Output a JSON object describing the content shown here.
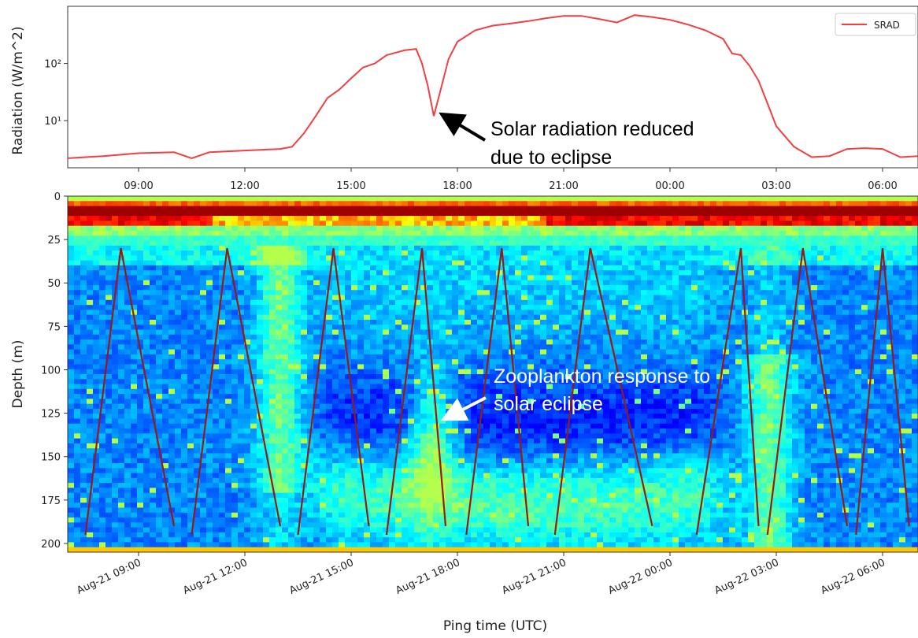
{
  "chart_data": [
    {
      "type": "line",
      "ylabel": "Radiation (W/m^2)",
      "yscale": "log",
      "ylim": [
        1.5,
        1000
      ],
      "yticks": [
        {
          "value": 10,
          "label": "10¹"
        },
        {
          "value": 100,
          "label": "10²"
        }
      ],
      "x_tick_labels": [
        "09:00",
        "12:00",
        "15:00",
        "18:00",
        "21:00",
        "00:00",
        "03:00",
        "06:00"
      ],
      "xlim": [
        "2017-08-21 07:00",
        "2017-08-22 07:00"
      ],
      "legend": {
        "entries": [
          "SRAD"
        ],
        "location": "upper right"
      },
      "series": [
        {
          "name": "SRAD",
          "color": "#f04040",
          "points": [
            [
              "2017-08-21 07:00",
              2.2
            ],
            [
              "2017-08-21 08:00",
              2.4
            ],
            [
              "2017-08-21 09:00",
              2.7
            ],
            [
              "2017-08-21 10:00",
              2.8
            ],
            [
              "2017-08-21 10:30",
              2.2
            ],
            [
              "2017-08-21 11:00",
              2.8
            ],
            [
              "2017-08-21 12:00",
              3.0
            ],
            [
              "2017-08-21 13:00",
              3.2
            ],
            [
              "2017-08-21 13:20",
              3.5
            ],
            [
              "2017-08-21 13:40",
              6
            ],
            [
              "2017-08-21 14:00",
              12
            ],
            [
              "2017-08-21 14:20",
              25
            ],
            [
              "2017-08-21 14:40",
              35
            ],
            [
              "2017-08-21 15:00",
              55
            ],
            [
              "2017-08-21 15:20",
              85
            ],
            [
              "2017-08-21 15:40",
              100
            ],
            [
              "2017-08-21 16:00",
              140
            ],
            [
              "2017-08-21 16:30",
              170
            ],
            [
              "2017-08-21 16:50",
              180
            ],
            [
              "2017-08-21 17:00",
              100
            ],
            [
              "2017-08-21 17:10",
              40
            ],
            [
              "2017-08-21 17:20",
              12
            ],
            [
              "2017-08-21 17:30",
              30
            ],
            [
              "2017-08-21 17:45",
              120
            ],
            [
              "2017-08-21 18:00",
              240
            ],
            [
              "2017-08-21 18:30",
              380
            ],
            [
              "2017-08-21 19:00",
              460
            ],
            [
              "2017-08-21 19:30",
              500
            ],
            [
              "2017-08-21 20:00",
              550
            ],
            [
              "2017-08-21 20:30",
              620
            ],
            [
              "2017-08-21 21:00",
              680
            ],
            [
              "2017-08-21 21:30",
              680
            ],
            [
              "2017-08-21 22:00",
              600
            ],
            [
              "2017-08-21 22:30",
              520
            ],
            [
              "2017-08-21 23:00",
              700
            ],
            [
              "2017-08-21 23:30",
              650
            ],
            [
              "2017-08-22 00:00",
              580
            ],
            [
              "2017-08-22 00:30",
              480
            ],
            [
              "2017-08-22 01:00",
              380
            ],
            [
              "2017-08-22 01:30",
              270
            ],
            [
              "2017-08-22 01:45",
              150
            ],
            [
              "2017-08-22 02:00",
              140
            ],
            [
              "2017-08-22 02:15",
              90
            ],
            [
              "2017-08-22 02:30",
              50
            ],
            [
              "2017-08-22 02:45",
              20
            ],
            [
              "2017-08-22 03:00",
              8
            ],
            [
              "2017-08-22 03:30",
              3.5
            ],
            [
              "2017-08-22 04:00",
              2.3
            ],
            [
              "2017-08-22 04:30",
              2.4
            ],
            [
              "2017-08-22 05:00",
              3.2
            ],
            [
              "2017-08-22 05:30",
              3.3
            ],
            [
              "2017-08-22 06:00",
              3.2
            ],
            [
              "2017-08-22 06:30",
              2.3
            ],
            [
              "2017-08-22 07:00",
              2.4
            ]
          ]
        }
      ],
      "annotations": [
        {
          "text_lines": [
            "Solar radiation reduced",
            "due to eclipse"
          ],
          "color": "#000000",
          "points_to": [
            "2017-08-21 17:20",
            12
          ]
        }
      ]
    },
    {
      "type": "heatmap",
      "colormap": "jet",
      "xlabel": "Ping time (UTC)",
      "ylabel": "Depth (m)",
      "ylim": [
        205,
        0
      ],
      "yticks": [
        0,
        25,
        50,
        75,
        100,
        125,
        150,
        175,
        200
      ],
      "xlim": [
        "2017-08-21 07:00",
        "2017-08-22 07:00"
      ],
      "x_tick_labels": [
        "Aug-21 09:00",
        "Aug-21 12:00",
        "Aug-21 15:00",
        "Aug-21 18:00",
        "Aug-21 21:00",
        "Aug-22 00:00",
        "Aug-22 03:00",
        "Aug-22 06:00"
      ],
      "profiler_casts": [
        {
          "top": [
            "2017-08-21 08:30",
            30
          ],
          "bottom_start": [
            "2017-08-21 07:30",
            195
          ],
          "bottom_end": [
            "2017-08-21 10:00",
            190
          ]
        },
        {
          "top": [
            "2017-08-21 11:30",
            30
          ],
          "bottom_start": [
            "2017-08-21 10:30",
            195
          ],
          "bottom_end": [
            "2017-08-21 13:00",
            190
          ]
        },
        {
          "top": [
            "2017-08-21 14:30",
            30
          ],
          "bottom_start": [
            "2017-08-21 13:30",
            195
          ],
          "bottom_end": [
            "2017-08-21 15:30",
            190
          ]
        },
        {
          "top": [
            "2017-08-21 17:00",
            30
          ],
          "bottom_start": [
            "2017-08-21 16:00",
            195
          ],
          "bottom_end": [
            "2017-08-21 17:40",
            190
          ]
        },
        {
          "top": [
            "2017-08-21 19:15",
            30
          ],
          "bottom_start": [
            "2017-08-21 18:15",
            195
          ],
          "bottom_end": [
            "2017-08-21 20:00",
            190
          ]
        },
        {
          "top": [
            "2017-08-21 21:45",
            30
          ],
          "bottom_start": [
            "2017-08-21 20:45",
            195
          ],
          "bottom_end": [
            "2017-08-21 23:30",
            190
          ]
        },
        {
          "top": [
            "2017-08-22 02:00",
            30
          ],
          "bottom_start": [
            "2017-08-22 00:45",
            195
          ],
          "bottom_end": [
            "2017-08-22 02:30",
            190
          ]
        },
        {
          "top": [
            "2017-08-22 03:45",
            30
          ],
          "bottom_start": [
            "2017-08-22 02:45",
            195
          ],
          "bottom_end": [
            "2017-08-22 05:00",
            190
          ]
        },
        {
          "top": [
            "2017-08-22 06:00",
            30
          ],
          "bottom_start": [
            "2017-08-22 05:15",
            195
          ],
          "bottom_end": [
            "2017-08-22 06:45",
            190
          ]
        }
      ],
      "annotations": [
        {
          "text_lines": [
            "Zooplankton response to",
            "solar eclipse"
          ],
          "color": "#ffffff",
          "points_to": [
            "2017-08-21 17:30",
            128
          ]
        }
      ]
    }
  ]
}
